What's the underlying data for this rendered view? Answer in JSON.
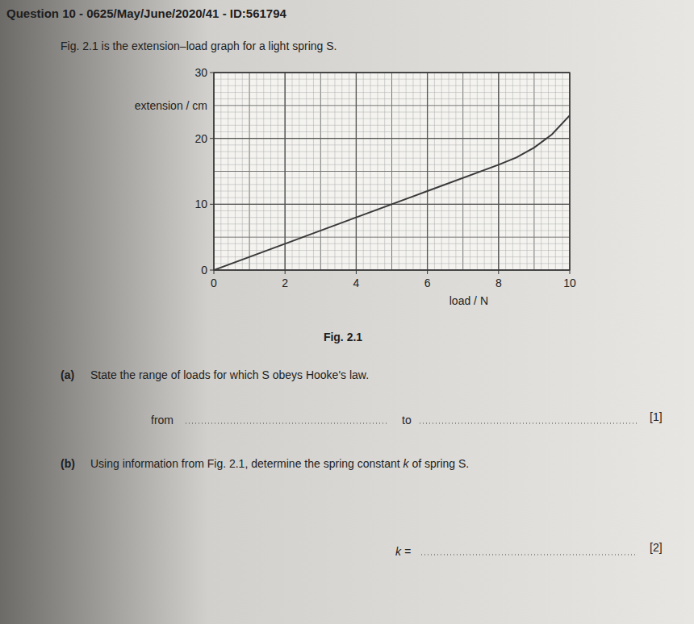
{
  "header": {
    "title": "Question 10 - 0625/May/June/2020/41 - ID:561794",
    "intro": "Fig. 2.1 is the extension–load graph for a light spring S."
  },
  "chart_data": {
    "type": "line",
    "x": [
      0,
      2,
      4,
      6,
      8,
      8.5,
      9,
      9.5,
      10
    ],
    "values": [
      0,
      4,
      8,
      12,
      16,
      17.1,
      18.6,
      20.6,
      23.5
    ],
    "xlim": [
      0,
      10
    ],
    "ylim": [
      0,
      30
    ],
    "xticks": [
      0,
      2,
      4,
      6,
      8,
      10
    ],
    "yticks": [
      0,
      10,
      20,
      30
    ],
    "xlabel": "load / N",
    "ylabel": "extension / cm",
    "caption": "Fig. 2.1",
    "grid": true,
    "color": "#3a3a3a"
  },
  "questions": [
    {
      "label": "(a)",
      "text_parts": [
        "State the range of loads for which S obeys Hooke's law."
      ],
      "answers": [
        "from",
        "to"
      ],
      "marks": "[1]"
    },
    {
      "label": "(b)",
      "text_parts": [
        "Using information from Fig. 2.1, determine the spring constant ",
        "k",
        " of spring S."
      ],
      "answers": [
        "k ="
      ],
      "marks": "[2]"
    }
  ]
}
